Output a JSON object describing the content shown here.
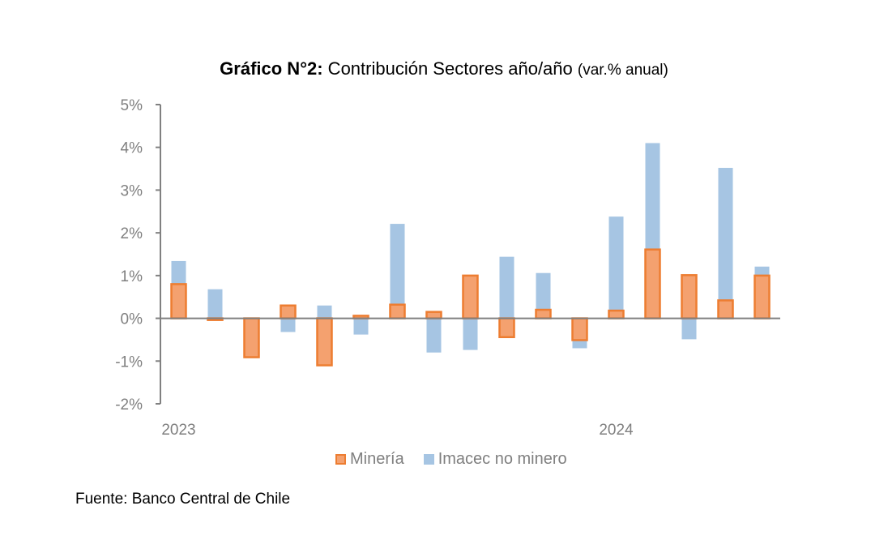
{
  "chart_data": {
    "type": "bar",
    "stacked": true,
    "title_bold": "Gráfico N°2:",
    "title_main": " Contribución Sectores año/año ",
    "title_small": "(var.% anual)",
    "xlabel": "",
    "ylabel": "",
    "ylim": [
      -2,
      5
    ],
    "yticks": [
      5,
      4,
      3,
      2,
      1,
      0,
      -1,
      -2
    ],
    "ytick_labels": [
      "5%",
      "4%",
      "3%",
      "2%",
      "1%",
      "0%",
      "-1%",
      "-2%"
    ],
    "categories": [
      "2023-01",
      "2023-02",
      "2023-03",
      "2023-04",
      "2023-05",
      "2023-06",
      "2023-07",
      "2023-08",
      "2023-09",
      "2023-10",
      "2023-11",
      "2023-12",
      "2024-01",
      "2024-02",
      "2024-03",
      "2024-04",
      "2024-05"
    ],
    "xtick_labels": [
      {
        "index": 0,
        "label": "2023"
      },
      {
        "index": 12,
        "label": "2024"
      }
    ],
    "series": [
      {
        "name": "Minería",
        "fill": "#f4a16f",
        "stroke": "#ed7d31",
        "values": [
          0.8,
          -0.04,
          -0.91,
          0.3,
          -1.1,
          0.06,
          0.32,
          0.15,
          1.0,
          -0.44,
          0.2,
          -0.51,
          0.18,
          1.61,
          1.01,
          0.42,
          1.0
        ]
      },
      {
        "name": "Imacec no minero",
        "fill": "#a6c5e3",
        "stroke": "none",
        "values": [
          0.54,
          0.68,
          -0.02,
          -0.32,
          0.3,
          -0.38,
          1.89,
          -0.8,
          -0.74,
          1.44,
          0.86,
          -0.19,
          2.2,
          2.49,
          -0.49,
          3.1,
          0.21
        ]
      }
    ],
    "grid": false,
    "legend_position": "bottom"
  },
  "source_note": "Fuente: Banco Central de Chile"
}
